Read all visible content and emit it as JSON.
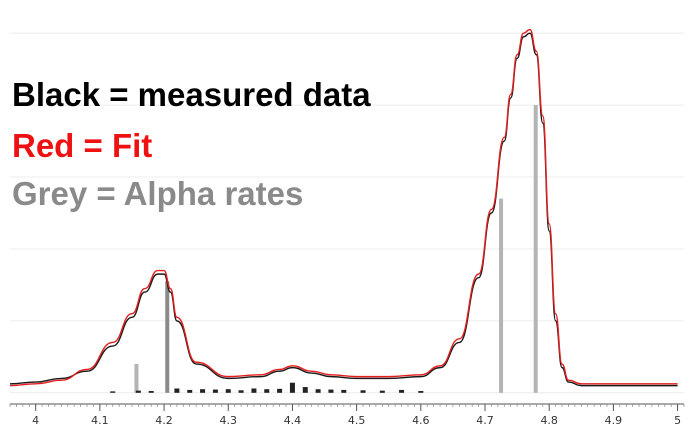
{
  "legend": {
    "black_label": "Black = measured data",
    "red_label": "Red = Fit",
    "grey_label": "Grey = Alpha rates"
  },
  "colors": {
    "measured": "#1a1a1a",
    "fit": "#e41e1e",
    "alpha": "#b4b4b4",
    "alpha_dark": "#8a8a8a",
    "grid": "#ececec",
    "axis": "#555555",
    "legend_black": "#000000",
    "legend_red": "#ee1111",
    "legend_grey": "#8a8a8a",
    "title_partial": "#22b05a"
  },
  "chart_data": {
    "type": "line",
    "title": "",
    "xlabel": "",
    "ylabel": "",
    "xlim": [
      3.96,
      5.01
    ],
    "ylim": [
      -0.02,
      1.07
    ],
    "x_ticks": [
      "4",
      "4.1",
      "4.2",
      "4.3",
      "4.4",
      "4.5",
      "4.6",
      "4.7",
      "4.8",
      "4.9",
      "5"
    ],
    "grid": true,
    "series": [
      {
        "name": "measured data",
        "style": "black line",
        "x": [
          3.96,
          4.0,
          4.04,
          4.08,
          4.12,
          4.15,
          4.17,
          4.19,
          4.2,
          4.21,
          4.22,
          4.25,
          4.3,
          4.35,
          4.38,
          4.4,
          4.43,
          4.46,
          4.5,
          4.55,
          4.6,
          4.63,
          4.66,
          4.69,
          4.71,
          4.73,
          4.74,
          4.75,
          4.76,
          4.77,
          4.78,
          4.79,
          4.8,
          4.81,
          4.82,
          4.83,
          4.85,
          4.9,
          4.95,
          5.0
        ],
        "y": [
          0.025,
          0.03,
          0.04,
          0.06,
          0.13,
          0.21,
          0.28,
          0.33,
          0.33,
          0.28,
          0.2,
          0.08,
          0.04,
          0.045,
          0.06,
          0.07,
          0.055,
          0.045,
          0.04,
          0.04,
          0.045,
          0.07,
          0.14,
          0.32,
          0.5,
          0.7,
          0.82,
          0.93,
          0.99,
          1.0,
          0.94,
          0.75,
          0.45,
          0.2,
          0.07,
          0.03,
          0.02,
          0.02,
          0.02,
          0.02
        ]
      },
      {
        "name": "Fit",
        "style": "red line",
        "x": [
          3.96,
          4.0,
          4.04,
          4.08,
          4.12,
          4.15,
          4.17,
          4.19,
          4.2,
          4.21,
          4.22,
          4.25,
          4.3,
          4.35,
          4.38,
          4.4,
          4.43,
          4.46,
          4.5,
          4.55,
          4.6,
          4.63,
          4.66,
          4.69,
          4.71,
          4.73,
          4.74,
          4.75,
          4.76,
          4.77,
          4.78,
          4.79,
          4.8,
          4.81,
          4.82,
          4.83,
          4.85,
          4.9,
          4.95,
          5.0
        ],
        "y": [
          0.02,
          0.025,
          0.035,
          0.065,
          0.14,
          0.22,
          0.29,
          0.34,
          0.34,
          0.29,
          0.21,
          0.085,
          0.045,
          0.05,
          0.065,
          0.075,
          0.06,
          0.05,
          0.045,
          0.045,
          0.05,
          0.075,
          0.15,
          0.33,
          0.51,
          0.71,
          0.83,
          0.94,
          1.0,
          1.01,
          0.95,
          0.77,
          0.47,
          0.22,
          0.08,
          0.035,
          0.025,
          0.025,
          0.025,
          0.025
        ]
      },
      {
        "name": "Alpha rates",
        "style": "grey vertical bars",
        "x": [
          4.157,
          4.205,
          4.725,
          4.779
        ],
        "y": [
          0.08,
          0.31,
          0.54,
          0.8
        ]
      }
    ],
    "minor_bars": {
      "x": [
        4.12,
        4.16,
        4.18,
        4.22,
        4.24,
        4.26,
        4.28,
        4.3,
        4.32,
        4.34,
        4.36,
        4.38,
        4.4,
        4.42,
        4.44,
        4.46,
        4.48,
        4.51,
        4.54,
        4.57,
        4.6
      ],
      "y": [
        0.004,
        0.006,
        0.005,
        0.012,
        0.008,
        0.01,
        0.009,
        0.01,
        0.007,
        0.012,
        0.01,
        0.011,
        0.028,
        0.016,
        0.01,
        0.009,
        0.008,
        0.007,
        0.006,
        0.008,
        0.005
      ]
    }
  }
}
